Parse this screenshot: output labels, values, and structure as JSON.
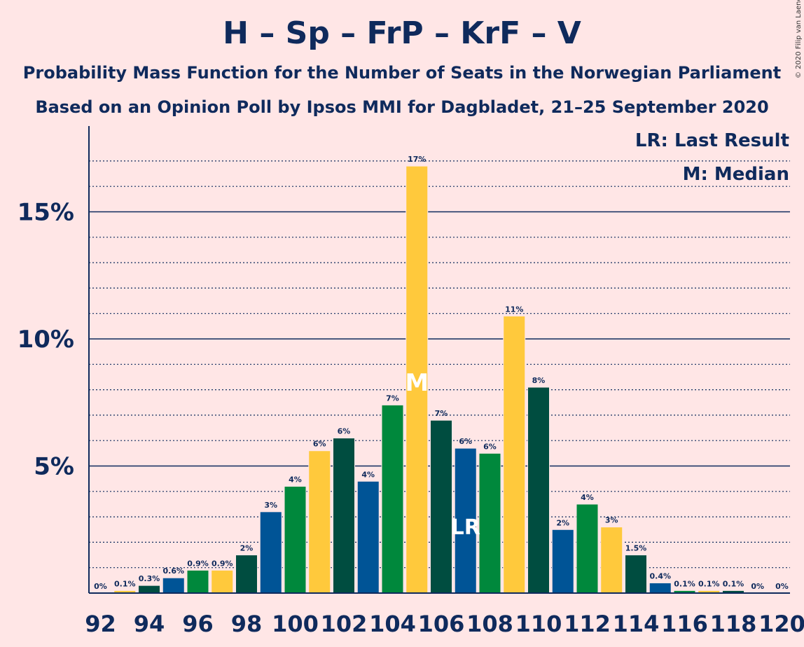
{
  "title": "H – Sp – FrP – KrF – V",
  "subtitle1": "Probability Mass Function for the Number of Seats in the Norwegian Parliament",
  "subtitle2": "Based on an Opinion Poll by Ipsos MMI for Dagbladet, 21–25 September 2020",
  "copyright": "© 2020 Filip van Laenen",
  "legend": {
    "last_result": "LR: Last Result",
    "median": "M: Median"
  },
  "markers": {
    "median_label": "M",
    "median_seat": 105,
    "last_result_label": "LR",
    "last_result_seat": 107
  },
  "colors": {
    "background": "#FFE6E6",
    "text": "#0F2A5C",
    "cycle": [
      "#FFC93C",
      "#004D40",
      "#005496",
      "#00883C"
    ]
  },
  "chart_data": {
    "type": "bar",
    "x": [
      92,
      93,
      94,
      95,
      96,
      97,
      98,
      99,
      100,
      101,
      102,
      103,
      104,
      105,
      106,
      107,
      108,
      109,
      110,
      111,
      112,
      113,
      114,
      115,
      116,
      117,
      118,
      119,
      120
    ],
    "values": [
      0,
      0.1,
      0.3,
      0.6,
      0.9,
      0.9,
      1.5,
      3.2,
      4.2,
      5.6,
      6.1,
      4.4,
      7.4,
      16.8,
      6.8,
      5.7,
      5.5,
      10.9,
      8.1,
      2.5,
      3.5,
      2.6,
      1.5,
      0.4,
      0.1,
      0.1,
      0.1,
      0,
      0
    ],
    "data_labels": [
      "0%",
      "0.1%",
      "0.3%",
      "0.6%",
      "0.9%",
      "0.9%",
      "2%",
      "3%",
      "4%",
      "6%",
      "6%",
      "4%",
      "7%",
      "17%",
      "7%",
      "6%",
      "6%",
      "11%",
      "8%",
      "2%",
      "4%",
      "3%",
      "1.5%",
      "0.4%",
      "0.1%",
      "0.1%",
      "0.1%",
      "0%",
      "0%"
    ],
    "x_tick_labels": [
      "92",
      "94",
      "96",
      "98",
      "100",
      "102",
      "104",
      "106",
      "108",
      "110",
      "112",
      "114",
      "116",
      "118",
      "120"
    ],
    "y_tick_labels": [
      "5%",
      "10%",
      "15%"
    ],
    "y_ticks": [
      5,
      10,
      15
    ],
    "ylim": [
      0,
      18
    ],
    "minor_grid_step": 1
  }
}
